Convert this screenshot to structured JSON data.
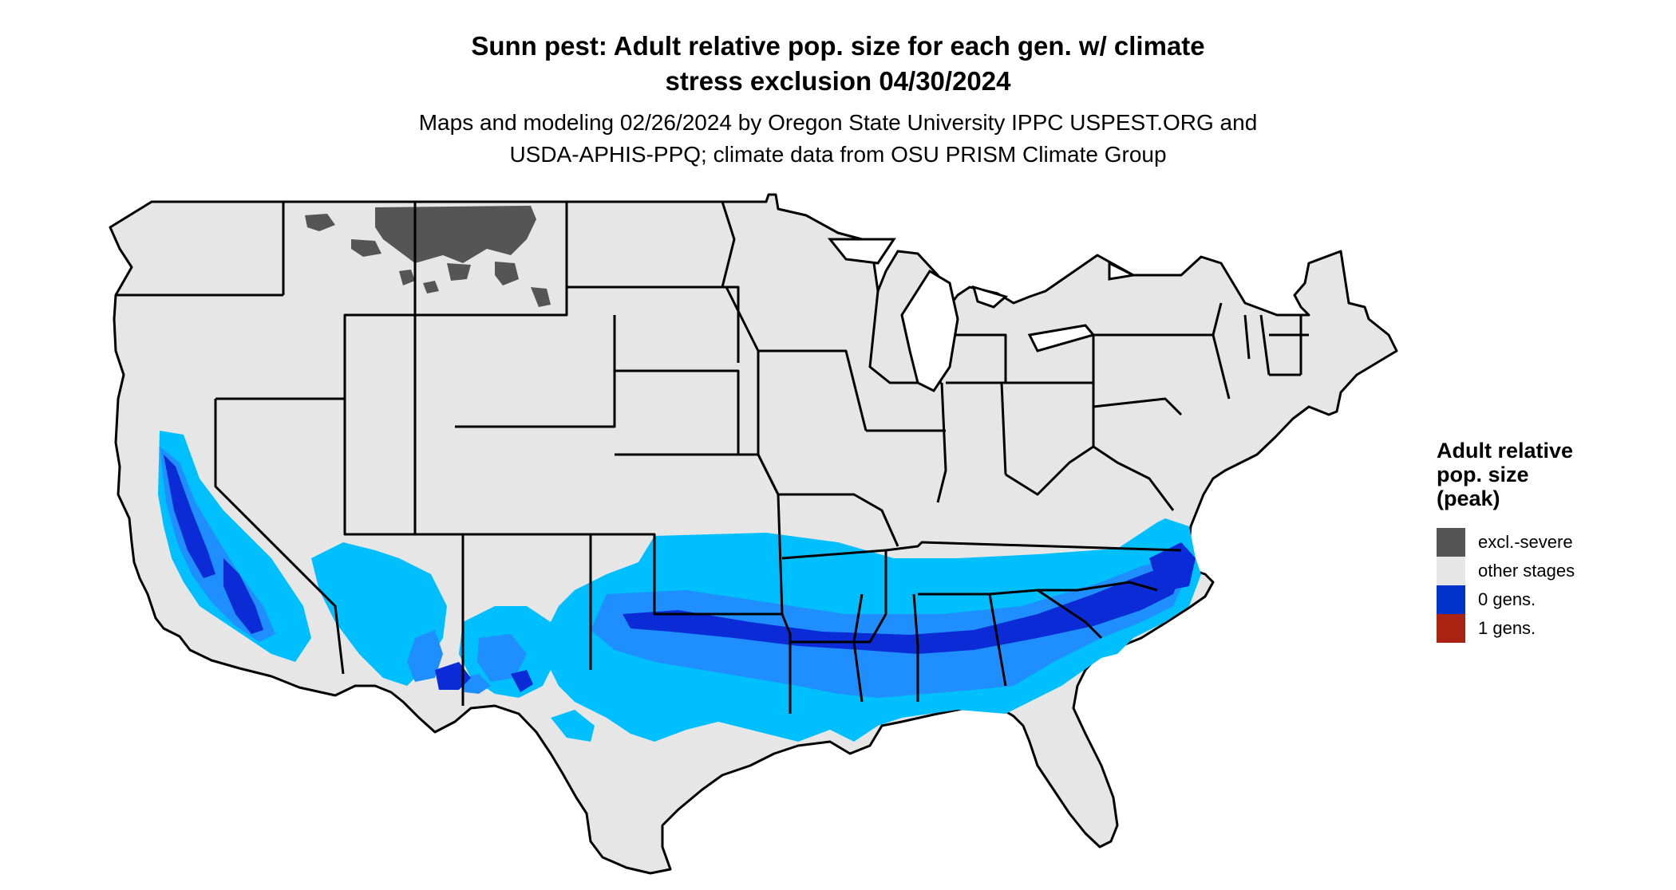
{
  "title": {
    "line1": "Sunn pest: Adult relative pop. size for each gen. w/ climate",
    "line2": "stress exclusion 04/30/2024"
  },
  "subtitle": {
    "line1": "Maps and modeling 02/26/2024 by Oregon State University IPPC USPEST.ORG and",
    "line2": "USDA-APHIS-PPQ; climate data from OSU PRISM Climate Group"
  },
  "legend": {
    "title_lines": [
      "Adult relative",
      "pop. size",
      "(peak)"
    ],
    "items": [
      {
        "label": "excl.-severe",
        "color": "#555555"
      },
      {
        "label": "other stages",
        "color": "#e6e6e6"
      },
      {
        "label": "0 gens.",
        "color": "#0033cc"
      },
      {
        "label": "1 gens.",
        "color": "#aa2211"
      }
    ]
  },
  "colors": {
    "land": "#e6e6e6",
    "excluded": "#555555",
    "zone_light": "#00bfff",
    "zone_mid": "#1f8fff",
    "zone_dark": "#0a2bd6",
    "borders": "#000000"
  }
}
